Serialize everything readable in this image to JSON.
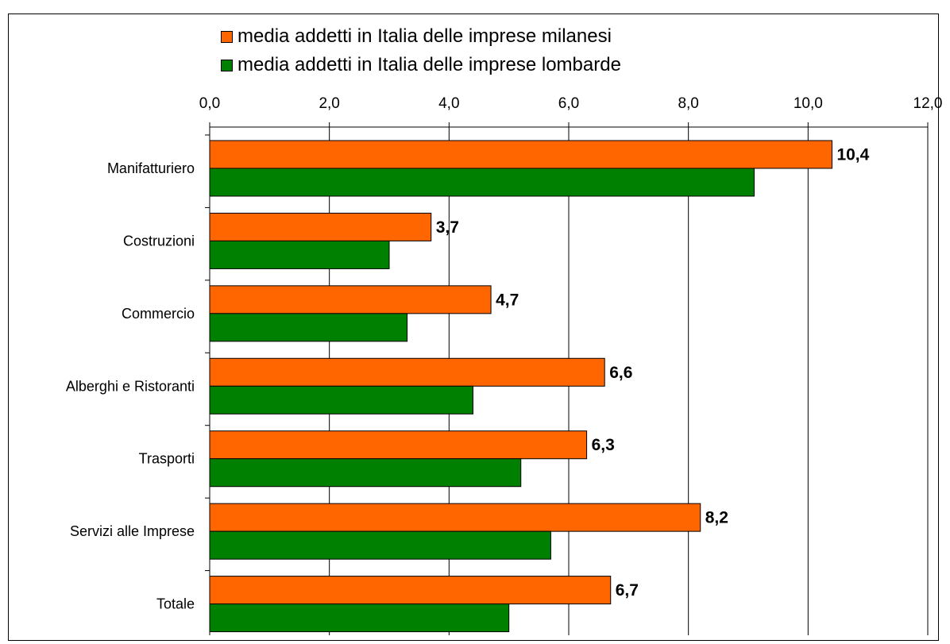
{
  "chart_data": {
    "type": "bar",
    "orientation": "horizontal",
    "categories": [
      "Manifatturiero",
      "Costruzioni",
      "Commercio",
      "Alberghi e Ristoranti",
      "Trasporti",
      "Servizi alle Imprese",
      "Totale"
    ],
    "series": [
      {
        "name": "media addetti in Italia delle imprese milanesi",
        "color": "#ff6600",
        "values": [
          10.4,
          3.7,
          4.7,
          6.6,
          6.3,
          8.2,
          6.7
        ],
        "data_labels": [
          "10,4",
          "3,7",
          "4,7",
          "6,6",
          "6,3",
          "8,2",
          "6,7"
        ]
      },
      {
        "name": "media addetti in Italia delle imprese lombarde",
        "color": "#008000",
        "values": [
          9.1,
          3.0,
          3.3,
          4.4,
          5.2,
          5.7,
          5.0
        ]
      }
    ],
    "xlim": [
      0,
      12
    ],
    "x_ticks": [
      0,
      2,
      4,
      6,
      8,
      10,
      12
    ],
    "x_tick_labels": [
      "0,0",
      "2,0",
      "4,0",
      "6,0",
      "8,0",
      "10,0",
      "12,0"
    ],
    "x_axis_position": "top",
    "grid": true,
    "legend_position": "top",
    "title": "",
    "xlabel": "",
    "ylabel": ""
  }
}
